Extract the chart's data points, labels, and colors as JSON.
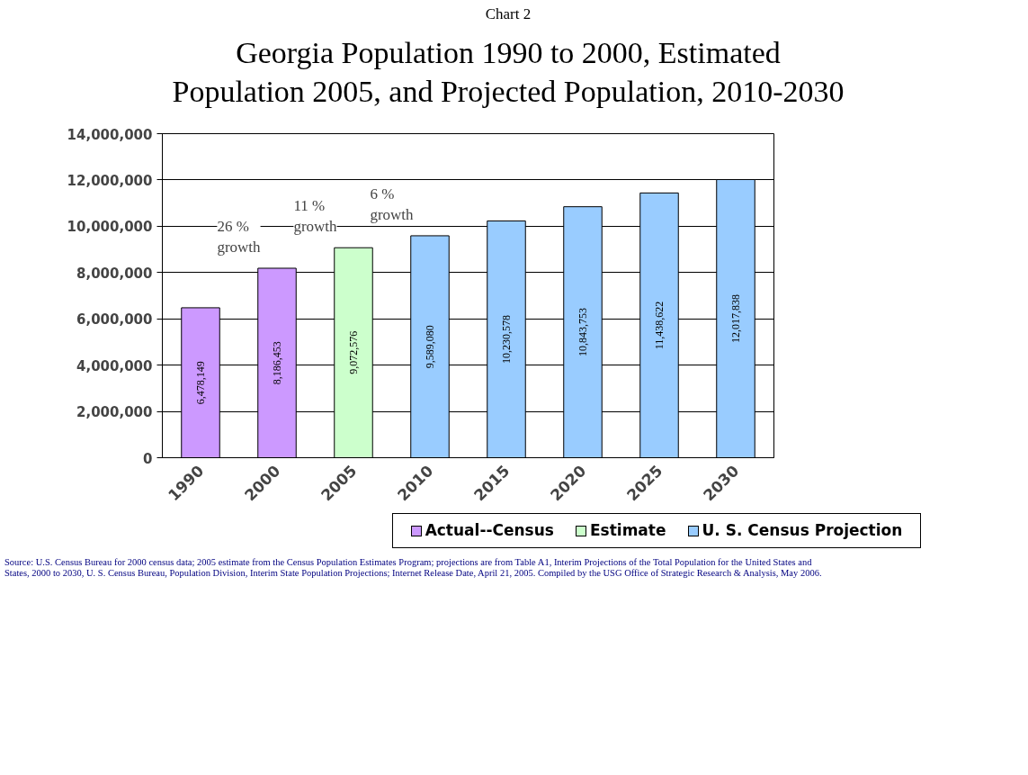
{
  "chart_data": {
    "type": "bar",
    "subtitle": "Chart 2",
    "title": "Georgia Population 1990 to 2000, Estimated\nPopulation 2005, and Projected Population, 2010-2030",
    "categories": [
      "1990",
      "2000",
      "2005",
      "2010",
      "2015",
      "2020",
      "2025",
      "2030"
    ],
    "series": [
      {
        "name": "Actual--Census",
        "color": "#cc99ff",
        "values": [
          6478149,
          8186453,
          null,
          null,
          null,
          null,
          null,
          null
        ],
        "value_labels": [
          "6,478,149",
          "8,186,453",
          null,
          null,
          null,
          null,
          null,
          null
        ]
      },
      {
        "name": "Estimate",
        "color": "#ccffcc",
        "values": [
          null,
          null,
          9072576,
          null,
          null,
          null,
          null,
          null
        ],
        "value_labels": [
          null,
          null,
          "9,072,576",
          null,
          null,
          null,
          null,
          null
        ]
      },
      {
        "name": "U. S. Census Projection",
        "color": "#99ccff",
        "values": [
          null,
          null,
          null,
          9589080,
          10230578,
          10843753,
          11438622,
          12017838
        ],
        "value_labels": [
          null,
          null,
          null,
          "9,589,080",
          "10,230,578",
          "10,843,753",
          "11,438,622",
          "12,017,838"
        ]
      }
    ],
    "ylim": [
      0,
      14000000
    ],
    "yticks": [
      {
        "value": 0,
        "label": "0"
      },
      {
        "value": 2000000,
        "label": "2,000,000"
      },
      {
        "value": 4000000,
        "label": "4,000,000"
      },
      {
        "value": 6000000,
        "label": "6,000,000"
      },
      {
        "value": 8000000,
        "label": "8,000,000"
      },
      {
        "value": 10000000,
        "label": "10,000,000"
      },
      {
        "value": 12000000,
        "label": "12,000,000"
      },
      {
        "value": 14000000,
        "label": "14,000,000"
      }
    ],
    "grid": "y",
    "legend": "bottom",
    "annotations": [
      "26 %\ngrowth",
      "11 %\ngrowth",
      "6 %\ngrowth",
      "Source:  U.S. Census Bureau for 2000 census data; 2005 estimate from the Census Population Estimates Program; projections are from Table A1, Interim Projections of the Total Population for the United States and\nStates, 2000 to 2030, U. S. Census Bureau, Population Division, Interim State Population Projections; Internet Release Date, April 21, 2005.   Compiled by the USG Office of Strategic Research & Analysis, May 2006."
    ]
  }
}
